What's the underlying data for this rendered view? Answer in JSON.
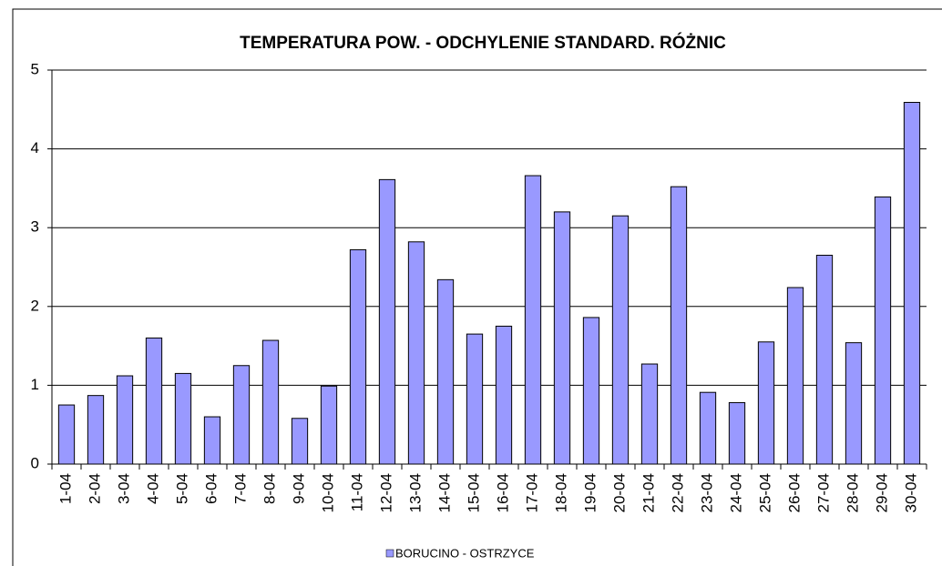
{
  "chart_data": {
    "type": "bar",
    "title": "TEMPERATURA POW. - ODCHYLENIE STANDARD. RÓŻNIC",
    "categories": [
      "1-04",
      "2-04",
      "3-04",
      "4-04",
      "5-04",
      "6-04",
      "7-04",
      "8-04",
      "9-04",
      "10-04",
      "11-04",
      "12-04",
      "13-04",
      "14-04",
      "15-04",
      "16-04",
      "17-04",
      "18-04",
      "19-04",
      "20-04",
      "21-04",
      "22-04",
      "23-04",
      "24-04",
      "25-04",
      "26-04",
      "27-04",
      "28-04",
      "29-04",
      "30-04"
    ],
    "series": [
      {
        "name": "BORUCINO - OSTRZYCE",
        "color": "#9999ff",
        "values": [
          0.75,
          0.87,
          1.12,
          1.6,
          1.15,
          0.6,
          1.25,
          1.57,
          0.58,
          0.99,
          2.72,
          3.61,
          2.82,
          2.34,
          1.65,
          1.75,
          3.66,
          3.2,
          1.86,
          3.15,
          1.27,
          3.52,
          0.91,
          0.78,
          1.55,
          2.24,
          2.65,
          1.54,
          3.39,
          4.59
        ]
      }
    ],
    "ylim": [
      0,
      5
    ],
    "yticks": [
      0,
      1,
      2,
      3,
      4,
      5
    ],
    "grid": true
  }
}
